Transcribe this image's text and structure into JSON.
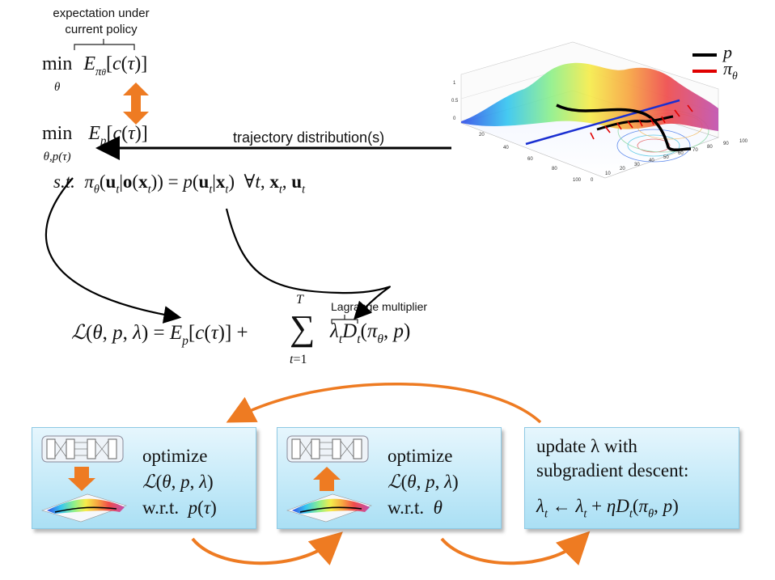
{
  "annotations": {
    "expectation_line1": "expectation under",
    "expectation_line2": "current policy",
    "trajectory": "trajectory distribution(s)",
    "lagrange": "Lagrange multiplier"
  },
  "legend": {
    "p_label": "p",
    "pi_label": "π",
    "pi_sub": "θ",
    "p_color": "#000000",
    "pi_color": "#e00000"
  },
  "equations": {
    "eq1_min": "min",
    "eq1_under": "θ",
    "eq2_min": "min",
    "eq2_under": "θ,p(τ)",
    "st": "s.t."
  },
  "plot_ticks": {
    "z": [
      "1",
      "0.5",
      "0"
    ],
    "left_axis": [
      "20",
      "40",
      "60",
      "80",
      "100"
    ],
    "bottom_axis": [
      "0",
      "10",
      "20",
      "30",
      "40",
      "50",
      "60",
      "70",
      "80",
      "90",
      "100"
    ]
  },
  "boxes": [
    {
      "line1": "optimize",
      "line3": "w.r.t.",
      "arrow": "down",
      "arrow_color": "#ee7b22"
    },
    {
      "line1": "optimize",
      "line3": "w.r.t.",
      "arrow": "up",
      "arrow_color": "#ee7b22"
    },
    {
      "line1": "update λ with",
      "line2": "subgradient descent:"
    }
  ],
  "colors": {
    "accent_orange": "#ee7b22",
    "box_fill": "#c2e9f8",
    "axis_blue": "#1a2fd1"
  }
}
